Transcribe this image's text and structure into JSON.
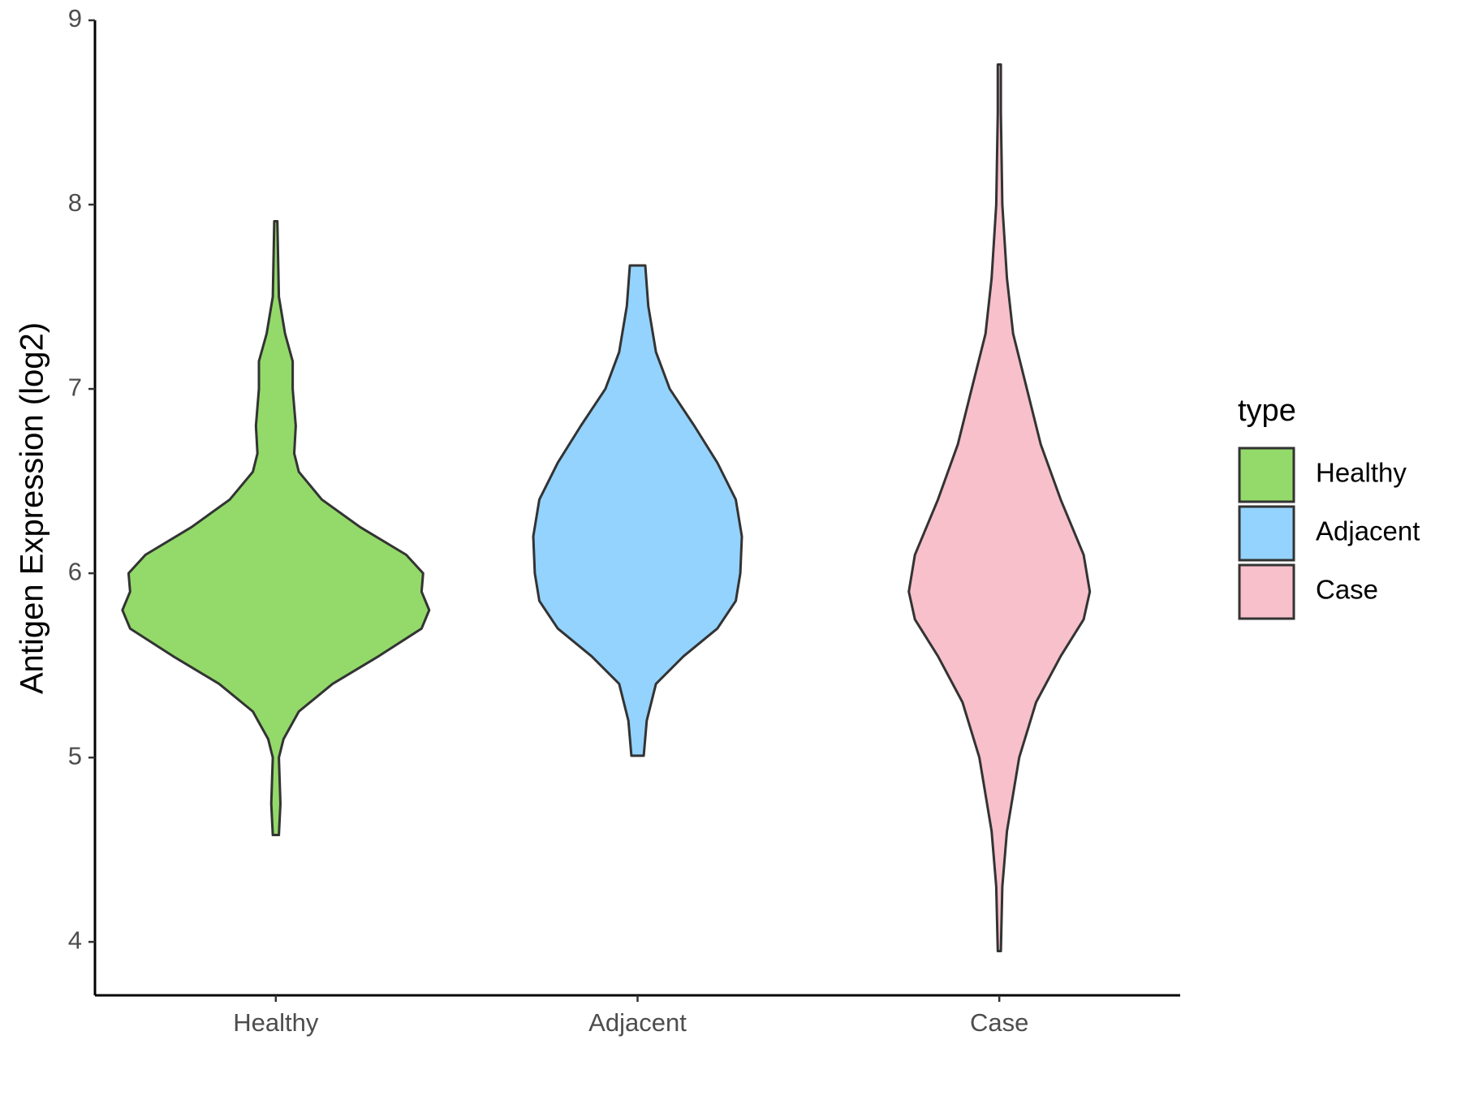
{
  "chart_data": {
    "type": "violin",
    "y_label": "Antigen Expression (log2)",
    "categories": [
      "Healthy",
      "Adjacent",
      "Case"
    ],
    "legend_title": "type",
    "legend": "right",
    "ylim": [
      3.71,
      9
    ],
    "yticks": [
      4,
      5,
      6,
      7,
      8,
      9
    ],
    "series": [
      {
        "name": "Healthy",
        "color": "#93da6a",
        "y": [
          4.58,
          4.75,
          5.0,
          5.1,
          5.25,
          5.4,
          5.55,
          5.7,
          5.8,
          5.9,
          6.0,
          6.1,
          6.25,
          6.4,
          6.55,
          6.65,
          6.8,
          7.0,
          7.15,
          7.3,
          7.5,
          7.91
        ],
        "width": [
          0.02,
          0.03,
          0.02,
          0.05,
          0.15,
          0.37,
          0.67,
          0.95,
          1.0,
          0.95,
          0.96,
          0.85,
          0.55,
          0.3,
          0.15,
          0.12,
          0.13,
          0.11,
          0.11,
          0.06,
          0.02,
          0.01
        ]
      },
      {
        "name": "Adjacent",
        "color": "#93d3fd",
        "y": [
          5.01,
          5.2,
          5.4,
          5.55,
          5.7,
          5.85,
          6.0,
          6.2,
          6.4,
          6.6,
          6.8,
          7.0,
          7.2,
          7.45,
          7.67
        ],
        "width": [
          0.04,
          0.06,
          0.12,
          0.3,
          0.52,
          0.64,
          0.67,
          0.68,
          0.64,
          0.52,
          0.37,
          0.21,
          0.12,
          0.07,
          0.05
        ]
      },
      {
        "name": "Case",
        "color": "#f7c0cb",
        "y": [
          3.95,
          4.3,
          4.6,
          5.0,
          5.3,
          5.55,
          5.75,
          5.9,
          6.1,
          6.4,
          6.7,
          7.0,
          7.3,
          7.6,
          8.0,
          8.5,
          8.76
        ],
        "width": [
          0.01,
          0.02,
          0.05,
          0.13,
          0.24,
          0.4,
          0.55,
          0.59,
          0.55,
          0.4,
          0.27,
          0.18,
          0.09,
          0.05,
          0.02,
          0.01,
          0.01
        ]
      }
    ]
  }
}
